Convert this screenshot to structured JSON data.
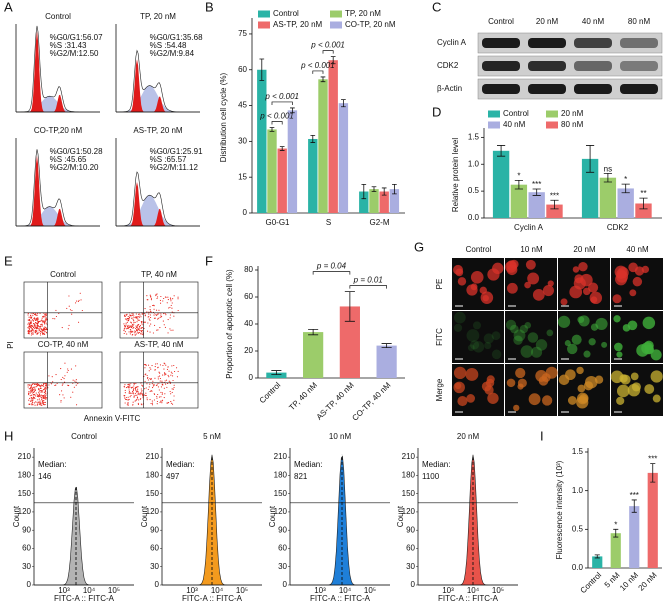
{
  "panel_labels": [
    "A",
    "B",
    "C",
    "D",
    "E",
    "F",
    "G",
    "H",
    "I"
  ],
  "cell_cycle": {
    "plots": [
      {
        "title": "Control",
        "stats": [
          "%G0/G1:56.07",
          "%S :31.43",
          "%G2/M:12.50"
        ]
      },
      {
        "title": "TP, 20 nM",
        "stats": [
          "%G0/G1:35.68",
          "%S :54.48",
          "%G2/M:9.84"
        ]
      },
      {
        "title": "CO-TP,20 nM",
        "stats": [
          "%G0/G1:50.28",
          "%S :45.65",
          "%G2/M:10.20"
        ]
      },
      {
        "title": "AS-TP, 20 nM",
        "stats": [
          "%G0/G1:25.91",
          "%S :65.57",
          "%G2/M:11.12"
        ]
      }
    ]
  },
  "western_blot": {
    "columns": [
      "Control",
      "20 nM",
      "40 nM",
      "80 nM"
    ],
    "rows": [
      "Cyclin A",
      "CDK2",
      "β-Actin"
    ]
  },
  "apoptosis": {
    "plots": [
      "Control",
      "TP, 40 nM",
      "CO-TP, 40 nM",
      "AS-TP, 40 nM"
    ],
    "y_label": "PI",
    "x_label": "Annexin V-FITC"
  },
  "imaging": {
    "columns": [
      "Control",
      "10 nM",
      "20 nM",
      "40 nM"
    ],
    "rows": [
      "PE",
      "FITC",
      "Merge"
    ]
  },
  "uptake": {
    "plots": [
      {
        "title": "Control",
        "median_label": "Median:",
        "median": 146,
        "color": "#b3b3b3"
      },
      {
        "title": "5 nM",
        "median_label": "Median:",
        "median": 497,
        "color": "#f39a1e"
      },
      {
        "title": "10 nM",
        "median_label": "Median:",
        "median": 821,
        "color": "#1f7fd8"
      },
      {
        "title": "20 nM",
        "median_label": "Median:",
        "median": 1100,
        "color": "#e8534a"
      }
    ],
    "ylim": [
      0,
      225
    ],
    "yticks": [
      0,
      30,
      60,
      90,
      120,
      150,
      180,
      210
    ],
    "xticks": [
      "10³",
      "10⁴",
      "10⁵"
    ],
    "x_label": "FITC-A :: FITC-A",
    "y_label": "Count"
  },
  "chart_data": [
    {
      "type": "bar",
      "y_label": "Distribution cell cycle (%)",
      "categories": [
        "G0-G1",
        "S",
        "G2-M"
      ],
      "series": [
        {
          "name": "Control",
          "color": "#2ab3a6",
          "values": [
            60,
            31,
            9
          ],
          "errors": [
            4.5,
            1.5,
            3
          ]
        },
        {
          "name": "TP, 20 nM",
          "color": "#9ccc6a",
          "values": [
            35,
            56,
            10
          ],
          "errors": [
            0.8,
            1,
            1
          ]
        },
        {
          "name": "AS-TP, 20 nM",
          "color": "#ee6a6a",
          "values": [
            27,
            64,
            9
          ],
          "errors": [
            0.8,
            1.5,
            1.5
          ]
        },
        {
          "name": "CO-TP, 20 nM",
          "color": "#aaaee0",
          "values": [
            43,
            46,
            10
          ],
          "errors": [
            1,
            1.5,
            2
          ]
        }
      ],
      "ylim": [
        0,
        80
      ],
      "yticks": [
        0,
        15,
        30,
        45,
        60,
        75
      ],
      "annotations": [
        "p < 0.001",
        "p < 0.001",
        "p < 0.001",
        "p < 0.001"
      ]
    },
    {
      "type": "bar",
      "y_label": "Relative protein level",
      "categories": [
        "Cyclin A",
        "CDK2"
      ],
      "series": [
        {
          "name": "Control",
          "color": "#2ab3a6",
          "values": [
            1.25,
            1.1
          ],
          "errors": [
            0.1,
            0.25
          ],
          "significance": [
            null,
            null
          ]
        },
        {
          "name": "20 nM",
          "color": "#9ccc6a",
          "values": [
            0.62,
            0.75
          ],
          "errors": [
            0.08,
            0.08
          ],
          "significance": [
            "*",
            "ns"
          ]
        },
        {
          "name": "40 nM",
          "color": "#aaaee0",
          "values": [
            0.48,
            0.55
          ],
          "errors": [
            0.06,
            0.08
          ],
          "significance": [
            "***",
            "*"
          ]
        },
        {
          "name": "80 nM",
          "color": "#ee6a6a",
          "values": [
            0.25,
            0.27
          ],
          "errors": [
            0.08,
            0.1
          ],
          "significance": [
            "***",
            "**"
          ]
        }
      ],
      "ylim": [
        0,
        1.6
      ],
      "yticks": [
        {
          "value": 0,
          "label": "0.0"
        },
        {
          "value": 0.5,
          "label": "0.5"
        },
        {
          "value": 1,
          "label": "1.0"
        },
        {
          "value": 1.5,
          "label": "1.5"
        }
      ]
    },
    {
      "type": "bar",
      "y_label": "Proportion of apoptotic cell (%)",
      "categories": [
        "Control",
        "TP, 40 nM",
        "AS-TP, 40 nM",
        "CO-TP, 40 nM"
      ],
      "values": [
        4,
        34,
        53,
        24
      ],
      "errors": [
        1.5,
        2,
        11,
        1.5
      ],
      "colors": [
        "#2ab3a6",
        "#9ccc6a",
        "#ee6a6a",
        "#aaaee0"
      ],
      "ylim": [
        0,
        80
      ],
      "yticks": [
        0,
        20,
        40,
        60,
        80
      ],
      "annotations": [
        "p = 0.04",
        "p = 0.01"
      ]
    },
    {
      "type": "bar",
      "y_label": "Fluorescence intensity (10³)",
      "categories": [
        "Control",
        "5 nM",
        "10 nM",
        "20 nM"
      ],
      "values": [
        0.15,
        0.45,
        0.8,
        1.23
      ],
      "errors": [
        0.02,
        0.05,
        0.08,
        0.12
      ],
      "significance": [
        null,
        "*",
        "***",
        "***"
      ],
      "colors": [
        "#2ab3a6",
        "#9ccc6a",
        "#aaaee0",
        "#ee6a6a"
      ],
      "ylim": [
        0,
        1.5
      ],
      "yticks": [
        {
          "value": 0,
          "label": "0.0"
        },
        {
          "value": 0.5,
          "label": "0.5"
        },
        {
          "value": 1,
          "label": "1.0"
        },
        {
          "value": 1.5,
          "label": "1.5"
        }
      ]
    }
  ]
}
